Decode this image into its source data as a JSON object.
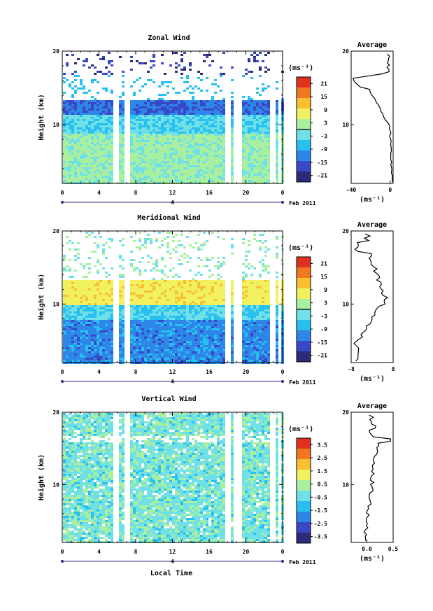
{
  "chart_data": [
    {
      "type": "heatmap",
      "title": "Zonal Wind",
      "ylabel": "Height (km)",
      "y_ticks": [
        "20",
        "10"
      ],
      "x_ticks": [
        "0",
        "4",
        "8",
        "12",
        "16",
        "20",
        "0"
      ],
      "day_marker": "4",
      "date_label": "Feb 2011",
      "colorbar": {
        "unit": "(ms⁻¹)",
        "ticks": [
          "21",
          "15",
          "9",
          "3",
          "-3",
          "-9",
          "-15",
          "-21"
        ]
      },
      "profile": {
        "title": "Average",
        "unit": "(ms⁻¹)",
        "x_ticks": [
          "-40",
          "0"
        ],
        "y_ticks": [
          "20",
          "10"
        ],
        "xlim": [
          -40,
          3
        ],
        "ylim": [
          2,
          20
        ]
      }
    },
    {
      "type": "heatmap",
      "title": "Meridional Wind",
      "ylabel": "Height (km)",
      "y_ticks": [
        "20",
        "10"
      ],
      "x_ticks": [
        "0",
        "4",
        "8",
        "12",
        "16",
        "20",
        "0"
      ],
      "day_marker": "4",
      "date_label": "Feb 2011",
      "colorbar": {
        "unit": "(ms⁻¹)",
        "ticks": [
          "21",
          "15",
          "9",
          "3",
          "-3",
          "-9",
          "-15",
          "-21"
        ]
      },
      "profile": {
        "title": "Average",
        "unit": "(ms⁻¹)",
        "x_ticks": [
          "-8",
          "8"
        ],
        "y_ticks": [
          "20",
          "10"
        ],
        "xlim": [
          -8,
          8
        ],
        "ylim": [
          2,
          20
        ]
      }
    },
    {
      "type": "heatmap",
      "title": "Vertical Wind",
      "ylabel": "Height (km)",
      "y_ticks": [
        "20",
        "10"
      ],
      "x_ticks": [
        "0",
        "4",
        "8",
        "12",
        "16",
        "20",
        "0"
      ],
      "day_marker": "4",
      "date_label": "Feb 2011",
      "xlabel": "Local Time",
      "colorbar": {
        "unit": "(ms⁻¹)",
        "ticks": [
          "3.5",
          "2.5",
          "1.5",
          "0.5",
          "-0.5",
          "-1.5",
          "-2.5",
          "-3.5"
        ]
      },
      "profile": {
        "title": "Average",
        "unit": "(ms⁻¹)",
        "x_ticks": [
          "0.0",
          "0.5"
        ],
        "y_ticks": [
          "20",
          "10"
        ],
        "xlim": [
          -0.3,
          0.5
        ],
        "ylim": [
          2,
          20
        ]
      }
    }
  ]
}
